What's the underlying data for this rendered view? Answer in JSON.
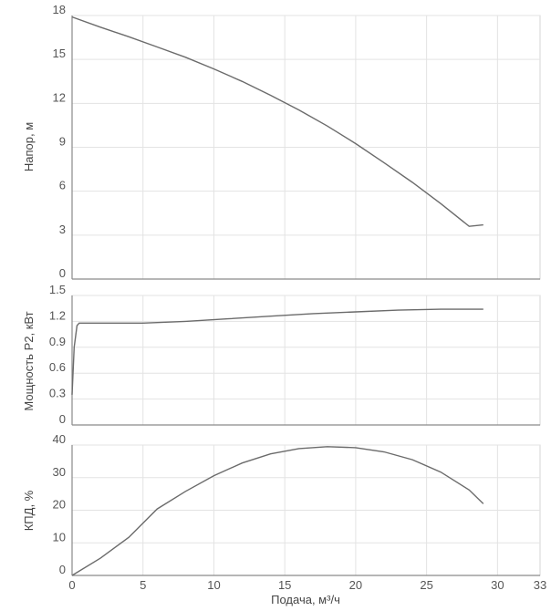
{
  "chart_data": [
    {
      "type": "line",
      "xlabel": "",
      "ylabel": "Напор, м",
      "xlim": [
        0,
        33
      ],
      "ylim": [
        0,
        18
      ],
      "xticks": [
        0,
        5,
        10,
        15,
        20,
        25,
        30,
        33
      ],
      "yticks": [
        "0",
        "3",
        "6",
        "9",
        "12",
        "15",
        "18"
      ],
      "grid": true,
      "series": [
        {
          "x": [
            0,
            2,
            4,
            6,
            8,
            10,
            12,
            14,
            16,
            18,
            20,
            22,
            24,
            26,
            28,
            29
          ],
          "values": [
            17.9,
            17.2,
            16.55,
            15.85,
            15.15,
            14.35,
            13.5,
            12.55,
            11.55,
            10.45,
            9.25,
            7.95,
            6.6,
            5.15,
            3.6,
            3.7
          ]
        }
      ]
    },
    {
      "type": "line",
      "xlabel": "",
      "ylabel": "Мощность P2, кВт",
      "xlim": [
        0,
        33
      ],
      "ylim": [
        0,
        1.5
      ],
      "xticks": [
        0,
        5,
        10,
        15,
        20,
        25,
        30,
        33
      ],
      "yticks": [
        "0",
        "0.3",
        "0.6",
        "0.9",
        "1.2",
        "1.5"
      ],
      "grid": true,
      "series": [
        {
          "x": [
            0,
            0.15,
            0.35,
            0.5,
            2,
            5,
            8,
            11,
            14,
            17,
            20,
            23,
            26,
            29
          ],
          "values": [
            0.35,
            0.9,
            1.15,
            1.18,
            1.18,
            1.18,
            1.2,
            1.23,
            1.26,
            1.29,
            1.31,
            1.33,
            1.34,
            1.34
          ]
        }
      ]
    },
    {
      "type": "line",
      "xlabel": "Подача, м³/ч",
      "ylabel": "КПД, %",
      "xlim": [
        0,
        33
      ],
      "ylim": [
        0,
        40
      ],
      "xticks": [
        "0",
        "5",
        "10",
        "15",
        "20",
        "25",
        "30",
        "33"
      ],
      "yticks": [
        "0",
        "10",
        "20",
        "30",
        "40"
      ],
      "grid": true,
      "series": [
        {
          "x": [
            0,
            2,
            4,
            6,
            8,
            10,
            12,
            14,
            16,
            18,
            20,
            22,
            24,
            26,
            28,
            29
          ],
          "values": [
            0,
            5.3,
            11.7,
            20.4,
            25.8,
            30.6,
            34.5,
            37.3,
            38.9,
            39.5,
            39.2,
            37.9,
            35.5,
            31.7,
            26.2,
            22.0
          ]
        }
      ]
    }
  ]
}
